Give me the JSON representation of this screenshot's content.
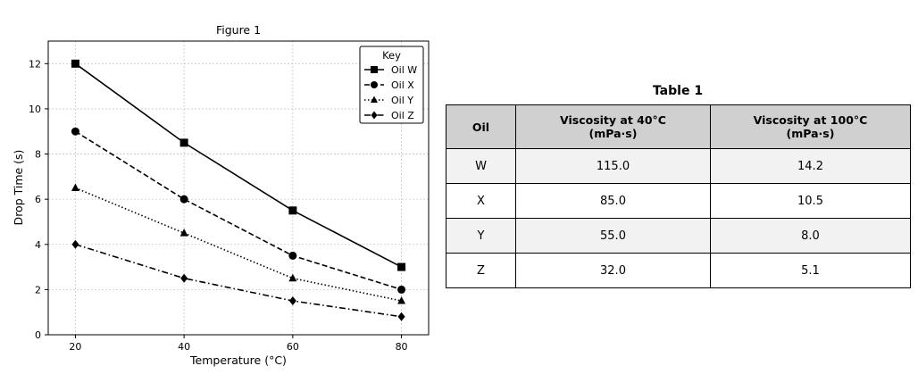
{
  "chart_data": {
    "type": "line",
    "title": "Figure 1",
    "xlabel": "Temperature (°C)",
    "ylabel": "Drop Time (s)",
    "x": [
      20,
      40,
      60,
      80
    ],
    "xlim": [
      15,
      85
    ],
    "ylim": [
      0,
      13
    ],
    "xticks": [
      20,
      40,
      60,
      80
    ],
    "yticks": [
      0,
      2,
      4,
      6,
      8,
      10,
      12
    ],
    "grid": true,
    "legend": {
      "title": "Key",
      "position": "top-right"
    },
    "series": [
      {
        "name": "Oil W",
        "values": [
          12,
          8.5,
          5.5,
          3
        ],
        "marker": "square",
        "linestyle": "solid"
      },
      {
        "name": "Oil X",
        "values": [
          9,
          6,
          3.5,
          2
        ],
        "marker": "circle",
        "linestyle": "dashed"
      },
      {
        "name": "Oil Y",
        "values": [
          6.5,
          4.5,
          2.5,
          1.5
        ],
        "marker": "triangle",
        "linestyle": "dotted"
      },
      {
        "name": "Oil Z",
        "values": [
          4,
          2.5,
          1.5,
          0.8
        ],
        "marker": "diamond",
        "linestyle": "dashdot"
      }
    ]
  },
  "table": {
    "title": "Table 1",
    "headers": [
      [
        "Oil"
      ],
      [
        "Viscosity at 40°C",
        "(mPa·s)"
      ],
      [
        "Viscosity at 100°C",
        "(mPa·s)"
      ]
    ],
    "rows": [
      [
        "W",
        "115.0",
        "14.2"
      ],
      [
        "X",
        "85.0",
        "10.5"
      ],
      [
        "Y",
        "55.0",
        "8.0"
      ],
      [
        "Z",
        "32.0",
        "5.1"
      ]
    ]
  }
}
